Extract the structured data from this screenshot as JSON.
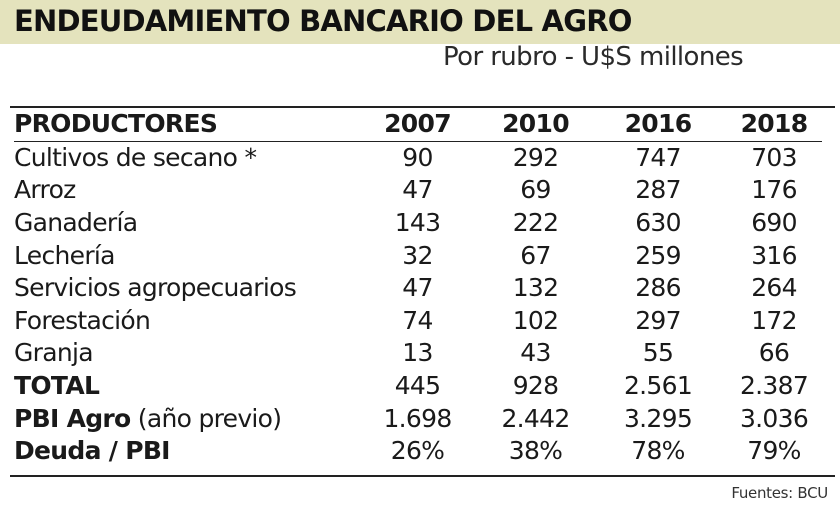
{
  "title": "ENDEUDAMIENTO BANCARIO DEL AGRO",
  "subtitle": "Por rubro - U$S millones",
  "source": "Fuentes: BCU",
  "colors": {
    "title_band": "#e4e3bd",
    "text": "#1a1a1a"
  },
  "chart_data": {
    "type": "table",
    "title": "ENDEUDAMIENTO BANCARIO DEL AGRO",
    "subtitle": "Por rubro - U$S millones",
    "columns": [
      "PRODUCTORES",
      "2007",
      "2010",
      "2016",
      "2018"
    ],
    "rows": [
      {
        "label": "Cultivos de secano *",
        "values": [
          "90",
          "292",
          "747",
          "703"
        ]
      },
      {
        "label": "Arroz",
        "values": [
          "47",
          "69",
          "287",
          "176"
        ]
      },
      {
        "label": "Ganadería",
        "values": [
          "143",
          "222",
          "630",
          "690"
        ]
      },
      {
        "label": "Lechería",
        "values": [
          "32",
          "67",
          "259",
          "316"
        ]
      },
      {
        "label": "Servicios agropecuarios",
        "values": [
          "47",
          "132",
          "286",
          "264"
        ]
      },
      {
        "label": "Forestación",
        "values": [
          "74",
          "102",
          "297",
          "172"
        ]
      },
      {
        "label": "Granja",
        "values": [
          "13",
          "43",
          "55",
          "66"
        ]
      },
      {
        "label": "TOTAL",
        "values": [
          "445",
          "928",
          "2.561",
          "2.387"
        ]
      },
      {
        "label": "PBI Agro",
        "label_suffix": " (año previo)",
        "values": [
          "1.698",
          "2.442",
          "3.295",
          "3.036"
        ]
      },
      {
        "label": "Deuda / PBI",
        "values": [
          "26%",
          "38%",
          "78%",
          "79%"
        ]
      }
    ]
  }
}
